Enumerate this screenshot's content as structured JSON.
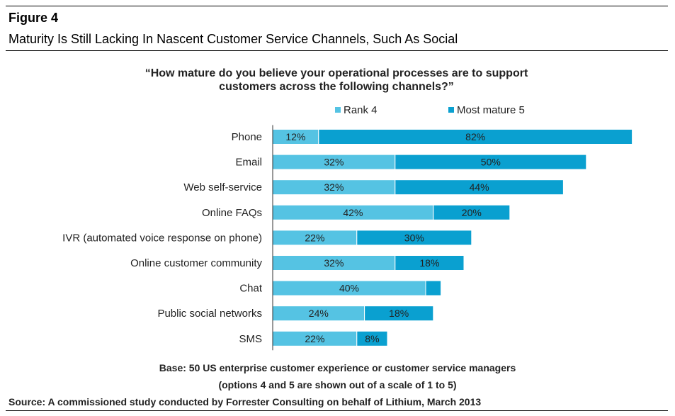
{
  "figure": {
    "label": "Figure 4",
    "title": "Maturity Is Still Lacking In Nascent Customer Service Channels, Such As Social"
  },
  "colors": {
    "rank4": "#55C3E3",
    "mature5": "#0AA0D0",
    "axis": "#333333"
  },
  "chart_data": {
    "type": "bar",
    "orientation": "horizontal",
    "stacked": true,
    "title_lines": [
      "“How mature do you believe your operational processes are to support",
      "customers across the following channels?”"
    ],
    "categories": [
      "Phone",
      "Email",
      "Web self-service",
      "Online FAQs",
      "IVR (automated voice response on phone)",
      "Online customer community",
      "Chat",
      "Public social networks",
      "SMS"
    ],
    "series": [
      {
        "name": "Rank 4",
        "values": [
          12,
          32,
          32,
          42,
          22,
          32,
          40,
          24,
          22
        ],
        "labels": [
          "12%",
          "32%",
          "32%",
          "42%",
          "22%",
          "32%",
          "40%",
          "24%",
          "22%"
        ]
      },
      {
        "name": "Most mature 5",
        "values": [
          82,
          50,
          44,
          20,
          30,
          18,
          4,
          18,
          8
        ],
        "labels": [
          "82%",
          "50%",
          "44%",
          "20%",
          "30%",
          "18%",
          "",
          "18%",
          "8%"
        ]
      }
    ],
    "legend_position": "top",
    "xlim": [
      0,
      95
    ],
    "gridlines": false
  },
  "notes": {
    "base": "Base: 50 US enterprise customer experience or customer service managers",
    "options": "(options 4 and 5 are shown out of a scale of 1 to 5)",
    "source": "Source: A commissioned study conducted by Forrester Consulting on behalf of Lithium, March 2013"
  }
}
